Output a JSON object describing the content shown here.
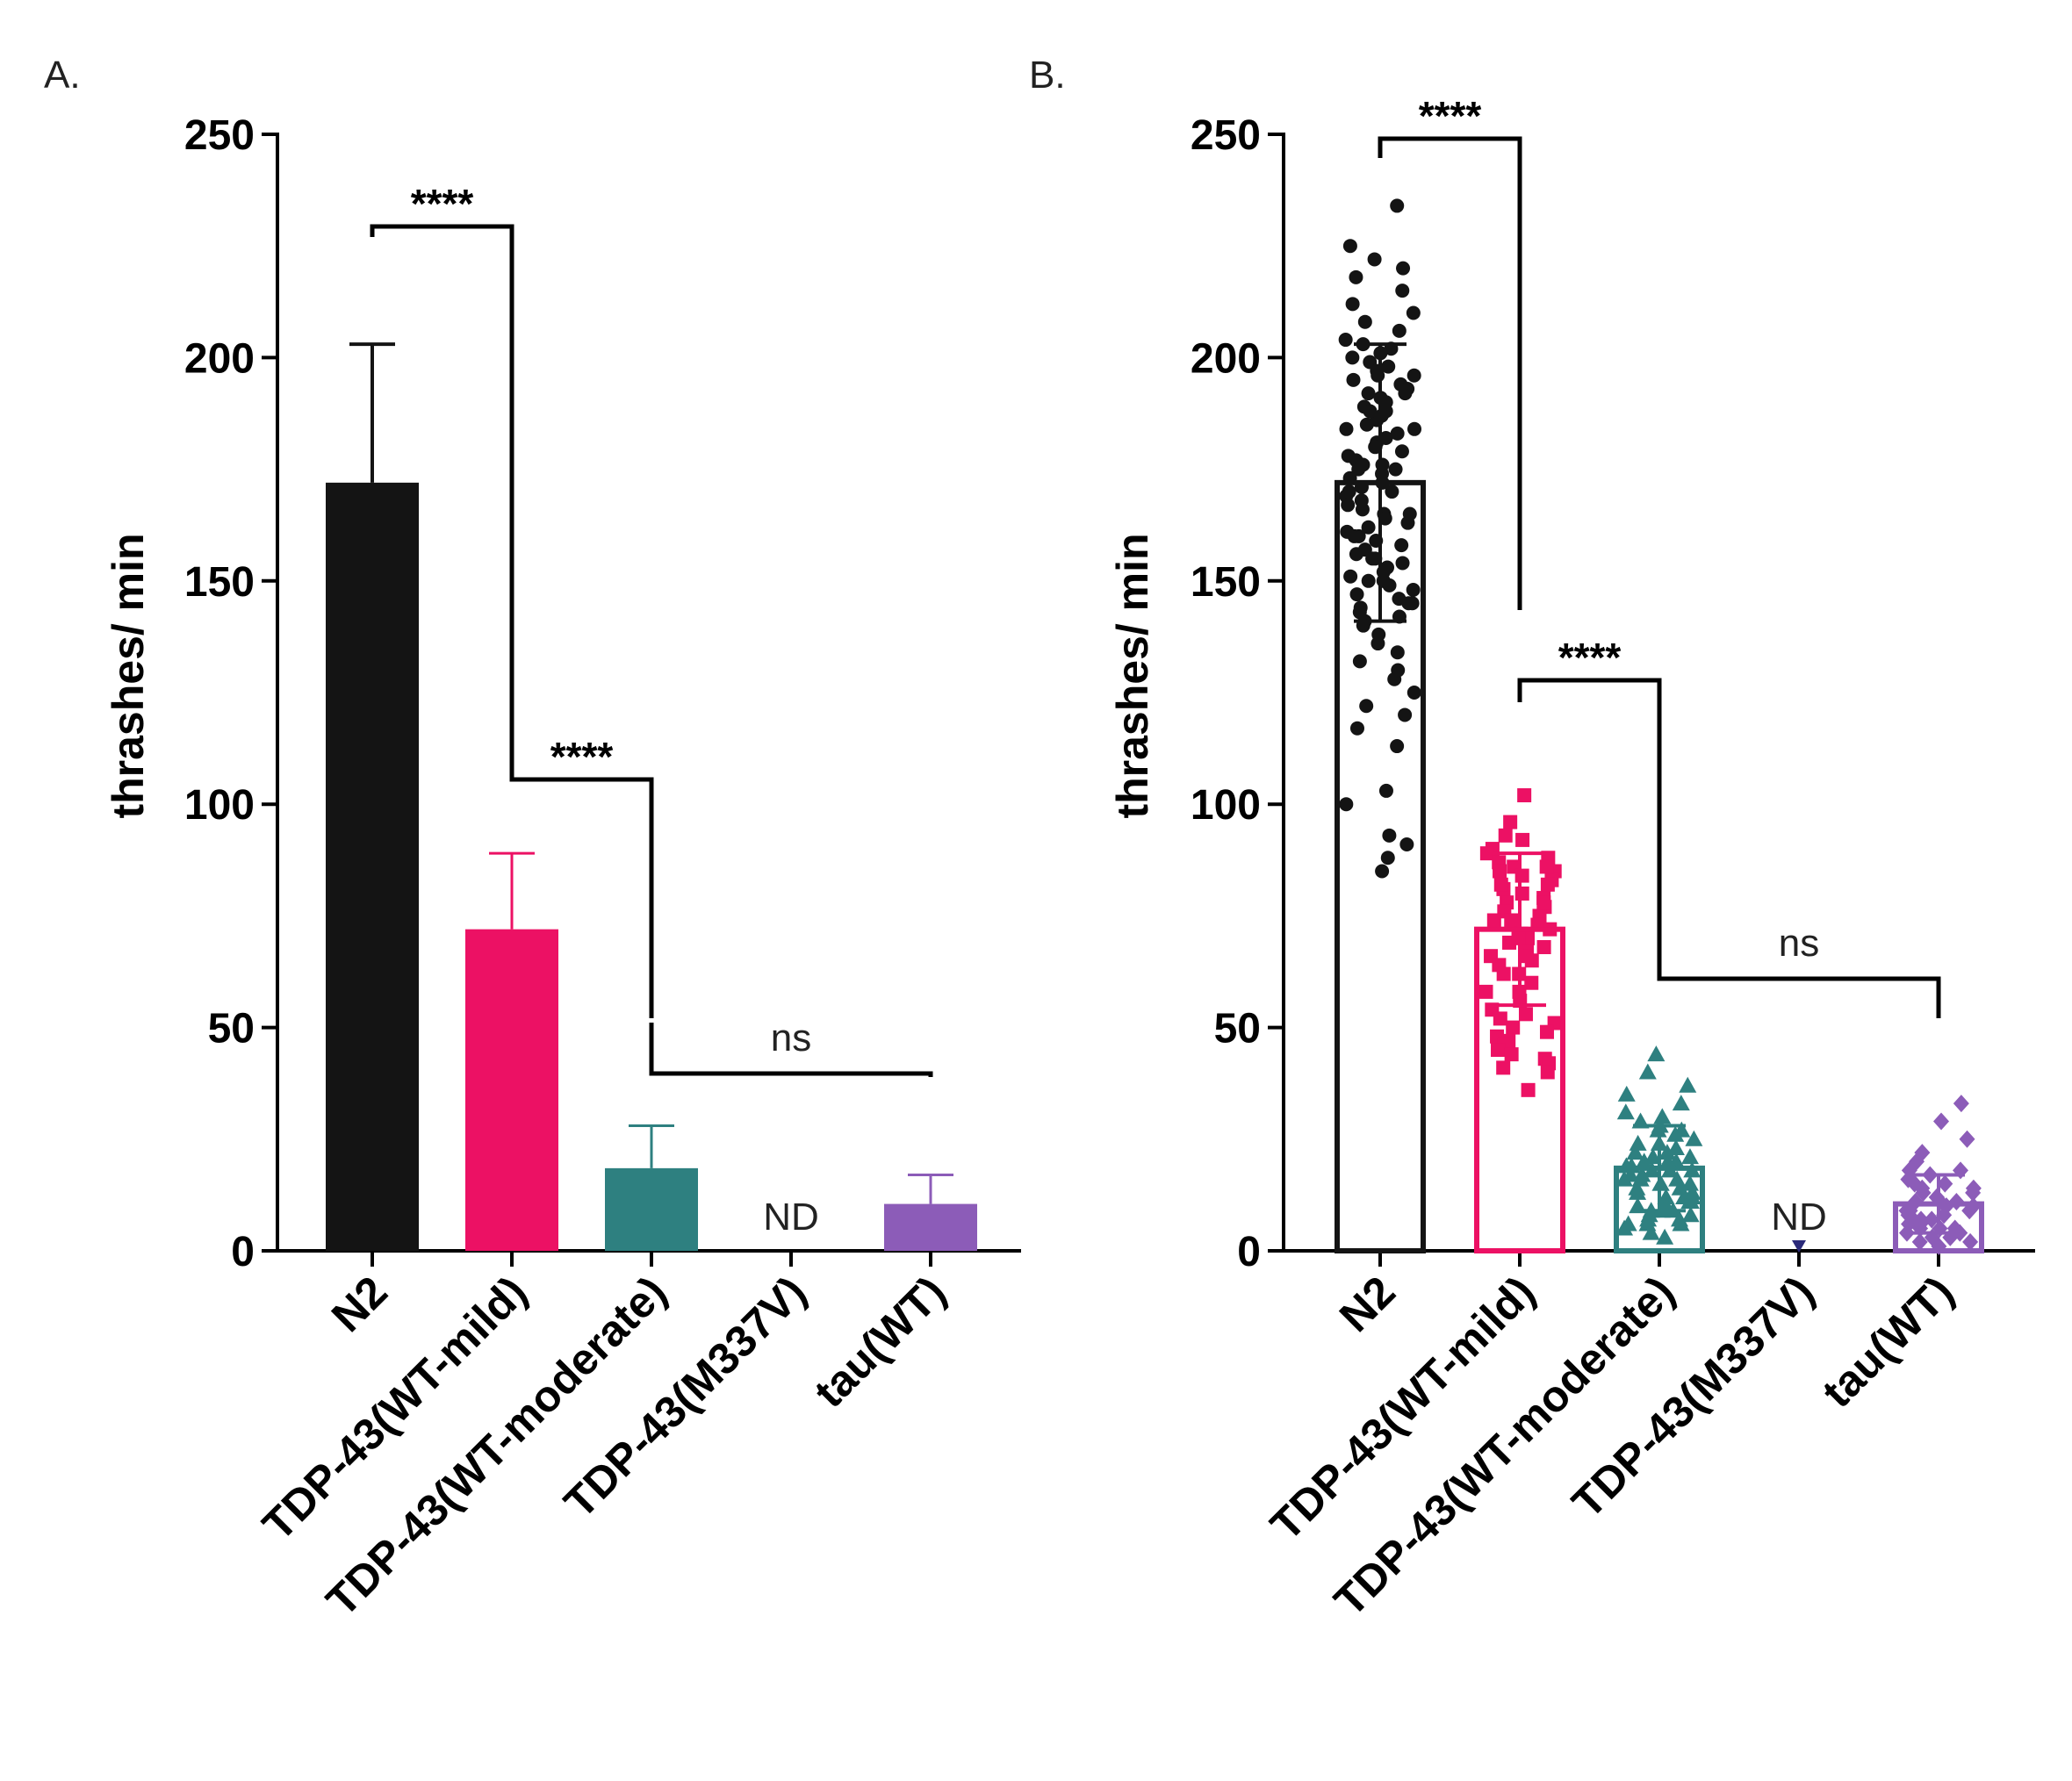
{
  "chart_data": [
    {
      "panel": "A.",
      "type": "bar",
      "ylabel": "thrashes/ min",
      "ylim": [
        0,
        250
      ],
      "yticks": [
        0,
        50,
        100,
        150,
        200,
        250
      ],
      "categories": [
        "N2",
        "TDP-43(WT-mild)",
        "TDP-43(WT-moderate)",
        "TDP-43(M337V)",
        "tau(WT)"
      ],
      "values": [
        172,
        72,
        18.5,
        null,
        10.5
      ],
      "error_upper": [
        203,
        89,
        28,
        null,
        17
      ],
      "colors": [
        "#141414",
        "#ec1164",
        "#2e8080",
        "#000000",
        "#8c5cb8"
      ],
      "not_detected": [
        null,
        null,
        null,
        "ND",
        null
      ],
      "comparisons": [
        {
          "from": 0,
          "to": 1,
          "label": "****"
        },
        {
          "from": 1,
          "to": 2,
          "label": "****"
        },
        {
          "from": 2,
          "to": 4,
          "label": "ns"
        }
      ]
    },
    {
      "panel": "B.",
      "type": "scatter",
      "ylabel": "thrashes/ min",
      "ylim": [
        0,
        250
      ],
      "yticks": [
        0,
        50,
        100,
        150,
        200,
        250
      ],
      "categories": [
        "N2",
        "TDP-43(WT-mild)",
        "TDP-43(WT-moderate)",
        "TDP-43(M337V)",
        "tau(WT)"
      ],
      "means": [
        172,
        72,
        18.5,
        0,
        10.5
      ],
      "sd": [
        31,
        17,
        9.5,
        0,
        6.5
      ],
      "markers": [
        "circle",
        "square",
        "triangle",
        "triangle-down",
        "diamond"
      ],
      "colors": [
        "#141414",
        "#ec1164",
        "#2e8080",
        "#2b2a7a",
        "#8c5cb8"
      ],
      "not_detected": [
        null,
        null,
        null,
        "ND",
        null
      ],
      "comparisons": [
        {
          "from": 0,
          "to": 1,
          "label": "****"
        },
        {
          "from": 1,
          "to": 2,
          "label": "****"
        },
        {
          "from": 2,
          "to": 4,
          "label": "ns"
        }
      ],
      "points": [
        [
          234,
          225,
          222,
          220,
          218,
          215,
          212,
          210,
          208,
          206,
          204,
          203,
          202,
          201,
          200,
          199,
          198,
          197,
          196,
          195,
          194,
          193,
          192,
          191,
          190,
          189,
          188,
          187,
          186,
          185,
          184,
          183,
          182,
          181,
          180,
          179,
          178,
          177,
          176,
          175,
          175,
          174,
          173,
          172,
          171,
          170,
          169,
          168,
          167,
          166,
          165,
          164,
          163,
          162,
          161,
          160,
          159,
          158,
          157,
          156,
          155,
          154,
          153,
          152,
          151,
          150,
          149,
          148,
          147,
          146,
          145,
          144,
          143,
          142,
          141,
          140,
          138,
          136,
          134,
          132,
          130,
          128,
          125,
          122,
          120,
          117,
          113,
          103,
          100,
          93,
          91,
          88,
          85,
          196,
          192,
          188,
          184,
          180,
          176,
          170,
          165,
          160,
          155,
          150,
          145
        ],
        [
          102,
          96,
          93,
          92,
          90,
          89,
          88,
          87,
          86,
          85,
          85,
          84,
          83,
          82,
          81,
          80,
          79,
          78,
          77,
          76,
          75,
          74,
          73,
          72,
          71,
          70,
          69,
          68,
          67,
          66,
          65,
          64,
          62,
          60,
          58,
          56,
          54,
          53,
          52,
          51,
          50,
          49,
          48,
          47,
          46,
          45,
          44,
          43,
          42,
          41,
          40,
          36,
          86,
          82,
          78,
          74,
          70,
          66,
          62,
          58
        ],
        [
          44,
          40,
          37,
          35,
          33,
          31,
          30,
          29,
          28,
          27,
          26,
          25,
          24,
          23,
          22,
          22,
          21,
          20,
          20,
          19,
          19,
          18,
          18,
          17,
          17,
          16,
          16,
          15,
          15,
          14,
          14,
          13,
          13,
          12,
          12,
          11,
          11,
          10,
          10,
          9,
          9,
          8,
          8,
          7,
          7,
          6,
          6,
          5,
          4,
          3,
          27,
          24,
          21,
          18,
          15,
          12,
          9,
          6,
          20,
          16
        ],
        [
          0
        ],
        [
          33,
          29,
          25,
          22,
          20,
          18,
          17,
          16,
          15,
          14,
          13,
          13,
          12,
          12,
          11,
          11,
          10,
          10,
          9,
          9,
          8,
          8,
          7,
          7,
          6,
          6,
          5,
          5,
          4,
          4,
          3,
          3,
          2,
          2,
          1,
          15,
          11,
          7,
          18,
          14,
          9,
          5
        ]
      ]
    }
  ]
}
